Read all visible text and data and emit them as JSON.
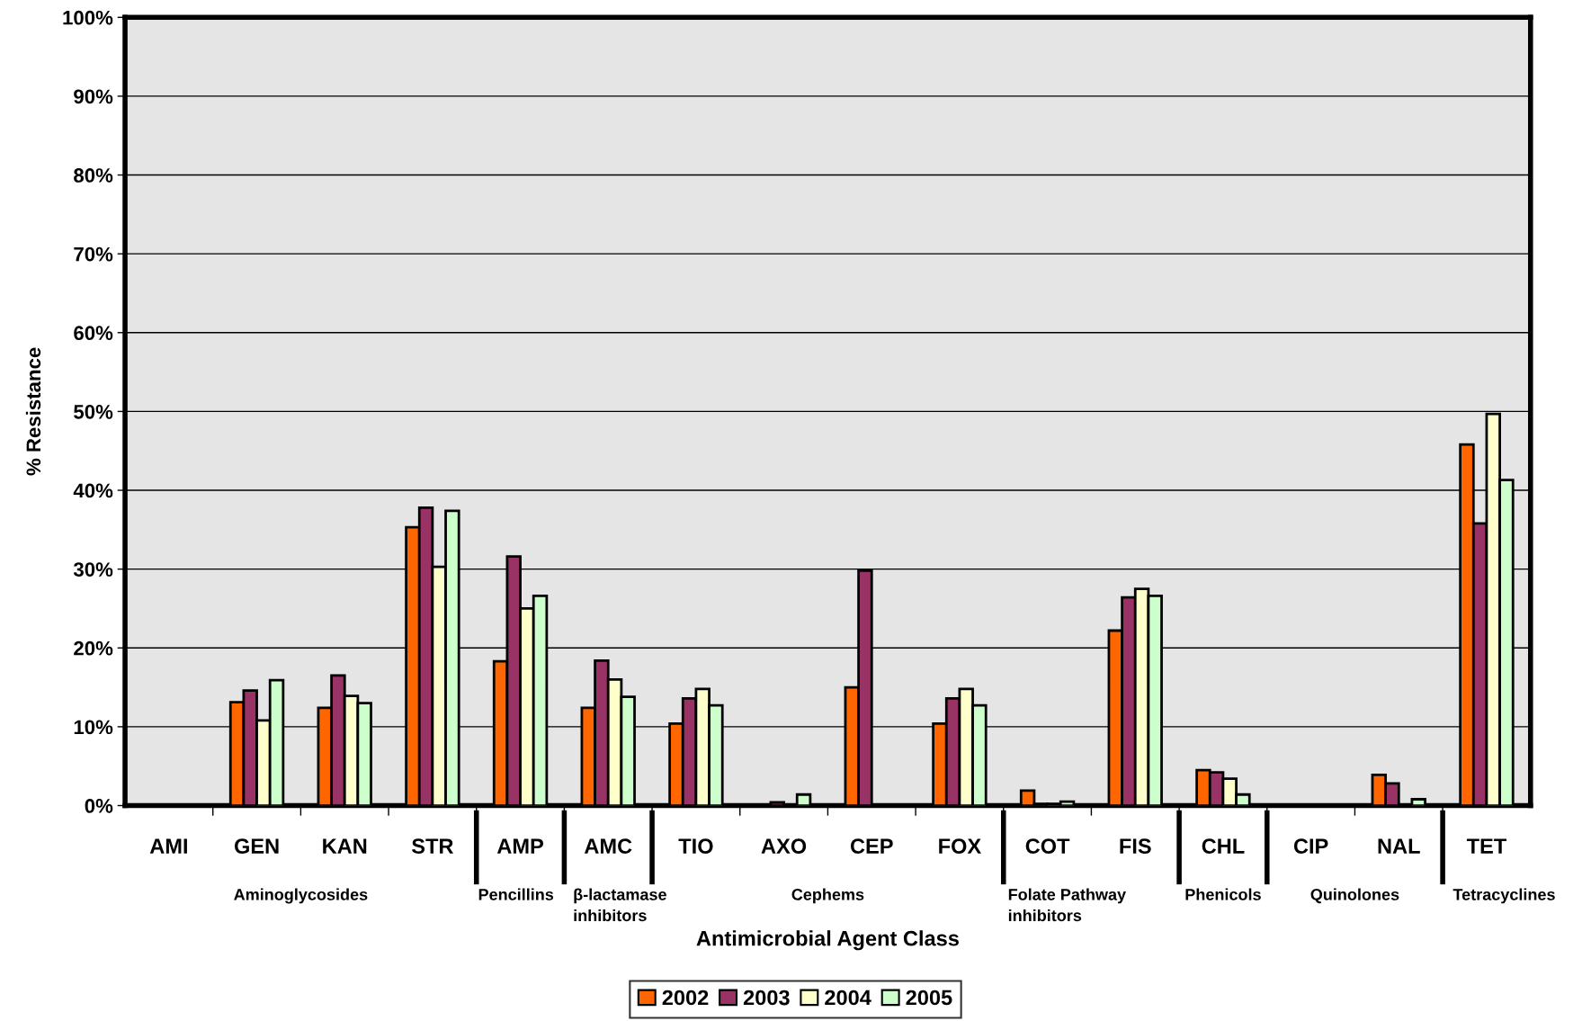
{
  "chart_data": {
    "type": "bar",
    "xlabel": "Antimicrobial Agent Class",
    "ylabel": "% Resistance",
    "categories": [
      "AMI",
      "GEN",
      "KAN",
      "STR",
      "AMP",
      "AMC",
      "TIO",
      "AXO",
      "CEP",
      "FOX",
      "COT",
      "FIS",
      "CHL",
      "CIP",
      "NAL",
      "TET"
    ],
    "series": [
      {
        "name": "2002",
        "color": "#ff6600",
        "values": [
          0,
          13.1,
          12.4,
          35.3,
          18.3,
          12.4,
          10.4,
          0,
          15.0,
          10.4,
          1.9,
          22.2,
          4.5,
          0,
          3.9,
          45.8
        ]
      },
      {
        "name": "2003",
        "color": "#993366",
        "values": [
          0,
          14.6,
          16.5,
          37.8,
          31.6,
          18.4,
          13.6,
          0.4,
          29.8,
          13.6,
          0.2,
          26.4,
          4.2,
          0,
          2.8,
          35.8
        ]
      },
      {
        "name": "2004",
        "color": "#ffffcc",
        "values": [
          0,
          10.8,
          13.9,
          30.3,
          25.0,
          16.0,
          14.8,
          0,
          0,
          14.8,
          0.2,
          27.5,
          3.4,
          0,
          0,
          49.7
        ]
      },
      {
        "name": "2005",
        "color": "#ccffcc",
        "values": [
          0,
          15.9,
          13.0,
          37.4,
          26.6,
          13.8,
          12.7,
          1.4,
          0,
          12.7,
          0.5,
          26.6,
          1.4,
          0,
          0.8,
          41.3
        ]
      }
    ],
    "ylim": [
      0,
      100
    ],
    "yticks": [
      {
        "value": 0,
        "label": "0%"
      },
      {
        "value": 10,
        "label": "10%"
      },
      {
        "value": 20,
        "label": "20%"
      },
      {
        "value": 30,
        "label": "30%"
      },
      {
        "value": 40,
        "label": "40%"
      },
      {
        "value": 50,
        "label": "50%"
      },
      {
        "value": 60,
        "label": "60%"
      },
      {
        "value": 70,
        "label": "70%"
      },
      {
        "value": 80,
        "label": "80%"
      },
      {
        "value": 90,
        "label": "90%"
      },
      {
        "value": 100,
        "label": "100%"
      }
    ],
    "grid": "y",
    "legend": "bottom",
    "annotations": [
      "Aminoglycosides",
      "Pencillins",
      "β-lactamase\ninhibitors",
      "Cephems",
      "Folate Pathway\ninhibitors",
      "Phenicols",
      "Quinolones",
      "Tetracyclines"
    ]
  }
}
